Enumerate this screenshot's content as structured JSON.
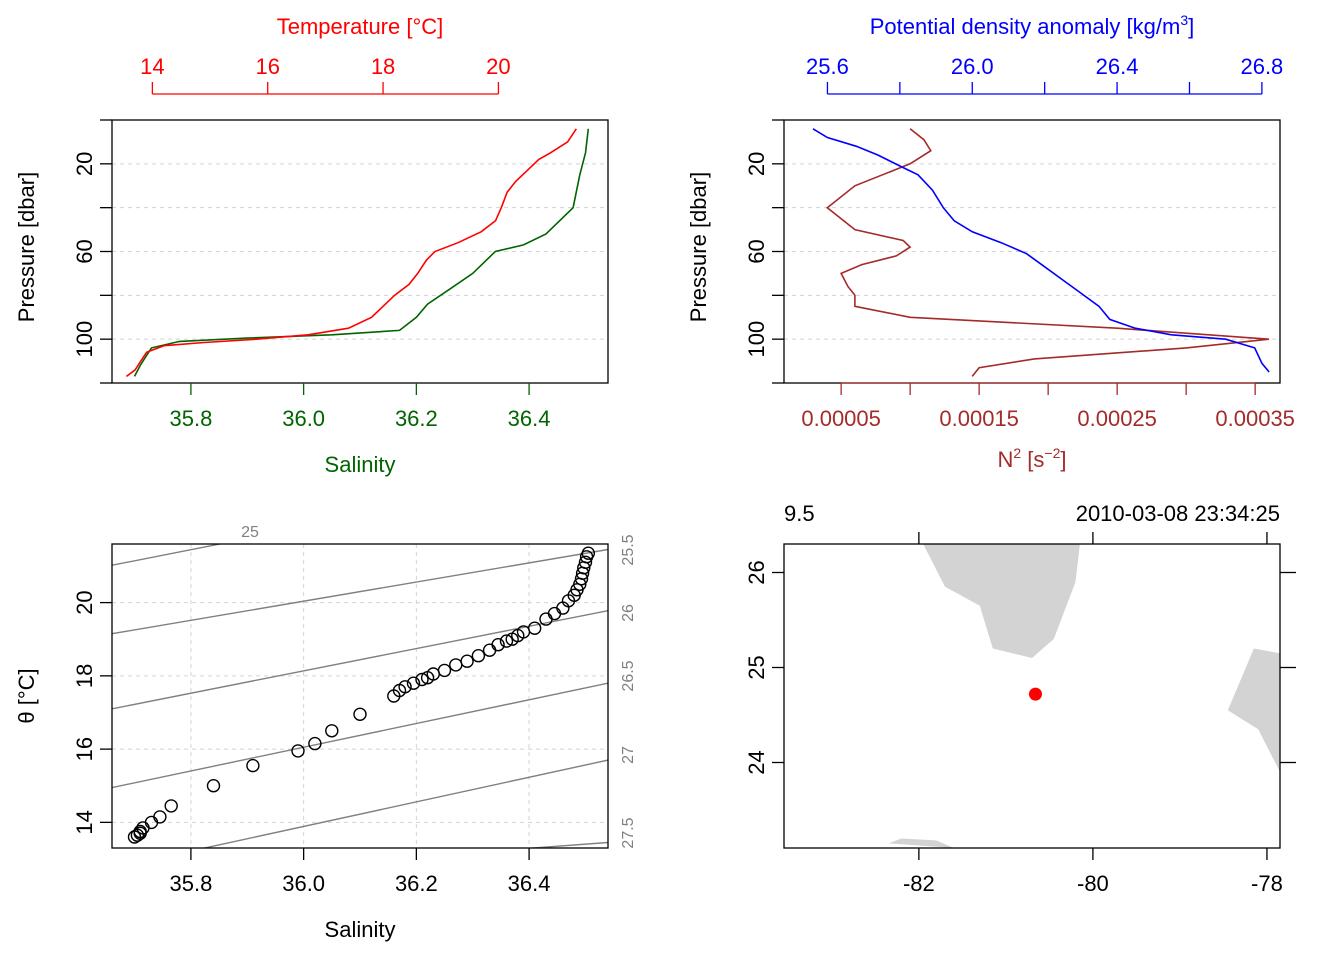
{
  "colors": {
    "temperature": "#ff0000",
    "salinity": "#006400",
    "density": "#0000ff",
    "n2": "#a52a2a",
    "grid": "#d3d3d3",
    "isopycnal": "#808080",
    "land": "#d3d3d3",
    "station": "#ff0000"
  },
  "chart_data": [
    {
      "type": "line",
      "xlabel_top": "Temperature [°C]",
      "xlabel_bottom": "Salinity",
      "ylabel": "Pressure [dbar]",
      "ylim": [
        125,
        0
      ],
      "temperature_lim": [
        13.3,
        21.9
      ],
      "salinity_lim": [
        35.66,
        36.54
      ],
      "temperature_ticks": [
        "14",
        "16",
        "18",
        "20"
      ],
      "salinity_ticks": [
        "35.8",
        "36.0",
        "36.2",
        "36.4"
      ],
      "pressure_ticks": [
        "20",
        "60",
        "100"
      ],
      "grid": true,
      "series": [
        {
          "quantity": "temperature",
          "points": [
            [
              21.35,
              4
            ],
            [
              21.2,
              10
            ],
            [
              20.9,
              15
            ],
            [
              20.7,
              18
            ],
            [
              20.5,
              23
            ],
            [
              20.3,
              28
            ],
            [
              20.15,
              33
            ],
            [
              20.05,
              40
            ],
            [
              19.95,
              46
            ],
            [
              19.7,
              51
            ],
            [
              19.3,
              56
            ],
            [
              18.9,
              60
            ],
            [
              18.75,
              64
            ],
            [
              18.6,
              70
            ],
            [
              18.45,
              75
            ],
            [
              18.2,
              80
            ],
            [
              18.0,
              85
            ],
            [
              17.8,
              90
            ],
            [
              17.4,
              95
            ],
            [
              16.7,
              98
            ],
            [
              15.8,
              100
            ],
            [
              14.9,
              101.5
            ],
            [
              14.2,
              103
            ],
            [
              13.9,
              106
            ],
            [
              13.8,
              110
            ],
            [
              13.7,
              114
            ],
            [
              13.55,
              117
            ]
          ]
        },
        {
          "quantity": "salinity",
          "points": [
            [
              36.505,
              4
            ],
            [
              36.5,
              15
            ],
            [
              36.49,
              25
            ],
            [
              36.478,
              40
            ],
            [
              36.43,
              52
            ],
            [
              36.39,
              57
            ],
            [
              36.34,
              60
            ],
            [
              36.3,
              70
            ],
            [
              36.26,
              77
            ],
            [
              36.22,
              84
            ],
            [
              36.2,
              90
            ],
            [
              36.17,
              96
            ],
            [
              36.05,
              98
            ],
            [
              35.9,
              99.5
            ],
            [
              35.78,
              101
            ],
            [
              35.73,
              104
            ],
            [
              35.72,
              108
            ],
            [
              35.71,
              112
            ],
            [
              35.7,
              117
            ]
          ]
        }
      ]
    },
    {
      "type": "line",
      "xlabel_top": "Potential density anomaly [kg/m³]",
      "xlabel_bottom": "N² [s⁻²]",
      "ylabel": "Pressure [dbar]",
      "ylim": [
        125,
        0
      ],
      "sigma_lim": [
        25.48,
        26.85
      ],
      "n2_lim": [
        8.6e-06,
        0.000368
      ],
      "sigma_ticks": [
        "25.6",
        "26.0",
        "26.4",
        "26.8"
      ],
      "n2_ticks": [
        "0.00005",
        "0.00015",
        "0.00025",
        "0.00035"
      ],
      "pressure_ticks": [
        "20",
        "60",
        "100"
      ],
      "grid": true,
      "series": [
        {
          "quantity": "potential_density_anomaly",
          "points": [
            [
              25.56,
              4
            ],
            [
              25.6,
              8
            ],
            [
              25.68,
              12
            ],
            [
              25.74,
              16
            ],
            [
              25.8,
              21
            ],
            [
              25.85,
              25
            ],
            [
              25.89,
              32
            ],
            [
              25.92,
              40
            ],
            [
              25.95,
              46
            ],
            [
              26.0,
              51
            ],
            [
              26.08,
              56
            ],
            [
              26.15,
              61
            ],
            [
              26.2,
              67
            ],
            [
              26.25,
              73
            ],
            [
              26.3,
              79
            ],
            [
              26.35,
              85
            ],
            [
              26.38,
              91
            ],
            [
              26.45,
              95
            ],
            [
              26.55,
              98
            ],
            [
              26.7,
              100
            ],
            [
              26.78,
              104
            ],
            [
              26.8,
              111
            ],
            [
              26.82,
              115
            ]
          ]
        },
        {
          "quantity": "N2",
          "points": [
            [
              0.0001,
              4
            ],
            [
              0.00011,
              9
            ],
            [
              0.000115,
              14
            ],
            [
              0.0001,
              20
            ],
            [
              6e-05,
              30
            ],
            [
              4e-05,
              40
            ],
            [
              6e-05,
              50
            ],
            [
              9.5e-05,
              55
            ],
            [
              0.0001,
              58
            ],
            [
              9e-05,
              62
            ],
            [
              6.5e-05,
              66
            ],
            [
              5e-05,
              70
            ],
            [
              5.5e-05,
              76
            ],
            [
              6e-05,
              80
            ],
            [
              6e-05,
              85
            ],
            [
              0.0001,
              90
            ],
            [
              0.00025,
              95
            ],
            [
              0.00036,
              100
            ],
            [
              0.0003,
              104
            ],
            [
              0.00019,
              109
            ],
            [
              0.00015,
              113
            ],
            [
              0.000145,
              117
            ]
          ]
        }
      ]
    },
    {
      "type": "scatter",
      "xlabel": "Salinity",
      "ylabel": "θ [°C]",
      "xlim": [
        35.66,
        36.54
      ],
      "ylim": [
        13.3,
        21.6
      ],
      "xticks": [
        "35.8",
        "36.0",
        "36.2",
        "36.4"
      ],
      "yticks": [
        "14",
        "16",
        "18",
        "20"
      ],
      "grid": true,
      "isopycnal_labels": [
        "25",
        "25.5",
        "26",
        "26.5",
        "27",
        "27.5"
      ],
      "points": [
        [
          35.7,
          13.6
        ],
        [
          35.705,
          13.65
        ],
        [
          35.71,
          13.7
        ],
        [
          35.71,
          13.75
        ],
        [
          35.715,
          13.85
        ],
        [
          35.73,
          14.0
        ],
        [
          35.745,
          14.15
        ],
        [
          35.765,
          14.45
        ],
        [
          35.84,
          15.0
        ],
        [
          35.91,
          15.55
        ],
        [
          35.99,
          15.95
        ],
        [
          36.02,
          16.15
        ],
        [
          36.05,
          16.5
        ],
        [
          36.1,
          16.95
        ],
        [
          36.16,
          17.45
        ],
        [
          36.17,
          17.6
        ],
        [
          36.18,
          17.7
        ],
        [
          36.195,
          17.8
        ],
        [
          36.21,
          17.9
        ],
        [
          36.22,
          17.95
        ],
        [
          36.23,
          18.05
        ],
        [
          36.25,
          18.15
        ],
        [
          36.27,
          18.3
        ],
        [
          36.29,
          18.4
        ],
        [
          36.31,
          18.55
        ],
        [
          36.33,
          18.7
        ],
        [
          36.345,
          18.85
        ],
        [
          36.36,
          18.95
        ],
        [
          36.37,
          19.0
        ],
        [
          36.38,
          19.1
        ],
        [
          36.39,
          19.2
        ],
        [
          36.41,
          19.3
        ],
        [
          36.43,
          19.55
        ],
        [
          36.445,
          19.7
        ],
        [
          36.46,
          19.85
        ],
        [
          36.47,
          20.05
        ],
        [
          36.48,
          20.2
        ],
        [
          36.485,
          20.35
        ],
        [
          36.49,
          20.5
        ],
        [
          36.493,
          20.65
        ],
        [
          36.495,
          20.8
        ],
        [
          36.497,
          20.95
        ],
        [
          36.5,
          21.1
        ],
        [
          36.502,
          21.25
        ],
        [
          36.505,
          21.35
        ]
      ]
    },
    {
      "type": "map",
      "station_label": "9.5",
      "datetime": "2010-03-08 23:34:25",
      "lon_lim": [
        -83.55,
        -77.85
      ],
      "lat_lim": [
        23.1,
        26.3
      ],
      "lon_ticks": [
        "-82",
        "-80",
        "-78"
      ],
      "lat_ticks": [
        "24",
        "25",
        "26"
      ],
      "station": {
        "lon": -80.66,
        "lat": 24.72
      },
      "land": [
        [
          [
            -81.95,
            26.3
          ],
          [
            -81.7,
            25.85
          ],
          [
            -81.3,
            25.65
          ],
          [
            -81.15,
            25.2
          ],
          [
            -80.7,
            25.1
          ],
          [
            -80.45,
            25.3
          ],
          [
            -80.2,
            25.9
          ],
          [
            -80.15,
            26.3
          ]
        ],
        [
          [
            -78.45,
            24.55
          ],
          [
            -78.15,
            25.2
          ],
          [
            -77.85,
            25.15
          ],
          [
            -77.85,
            23.9
          ],
          [
            -78.1,
            24.35
          ]
        ],
        [
          [
            -82.35,
            23.15
          ],
          [
            -82.2,
            23.2
          ],
          [
            -81.8,
            23.18
          ],
          [
            -81.6,
            23.1
          ]
        ]
      ]
    }
  ]
}
